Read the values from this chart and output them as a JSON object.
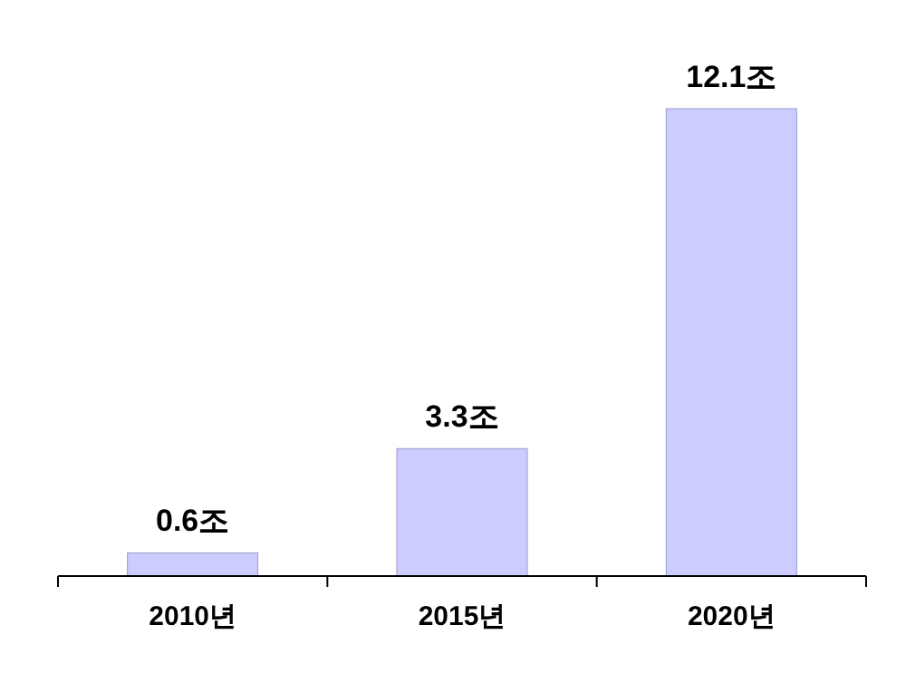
{
  "chart_data": {
    "type": "bar",
    "categories": [
      "2010년",
      "2015년",
      "2020년"
    ],
    "values": [
      0.6,
      3.3,
      12.1
    ],
    "value_labels": [
      "0.6조",
      "3.3조",
      "12.1조"
    ],
    "color": "#ccccff"
  }
}
